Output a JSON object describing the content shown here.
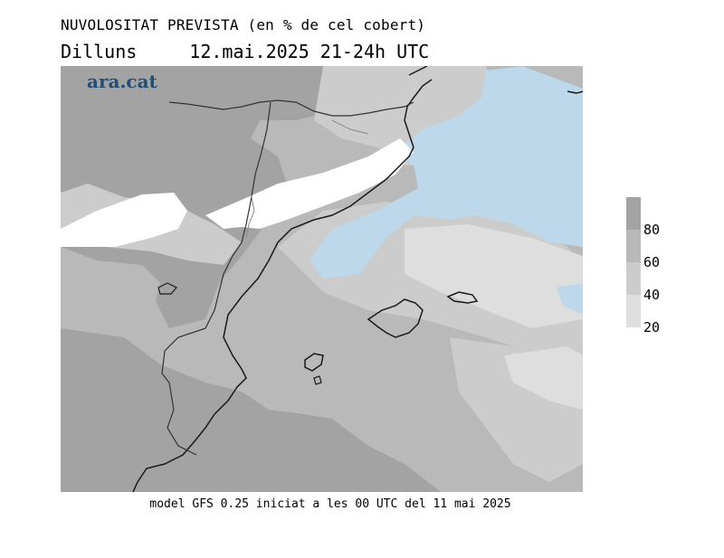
{
  "header": {
    "title": "NUVOLOSITAT PREVISTA (en % de cel cobert)",
    "day": "Dilluns",
    "datetime": "12.mai.2025 21-24h UTC"
  },
  "logo": {
    "text": "ara.cat",
    "color": "#1f4e7a"
  },
  "footer": {
    "text": "model GFS 0.25 iniciat a les 00 UTC del 11 mai 2025"
  },
  "legend": {
    "labels": [
      "80",
      "60",
      "40",
      "20"
    ],
    "colors": [
      "#a3a3a3",
      "#b9b9b9",
      "#cccccc",
      "#dedede"
    ]
  },
  "map_colors": {
    "background": "#ffffff",
    "level_20": "#dedede",
    "level_40": "#cccccc",
    "level_60": "#b9b9b9",
    "level_80": "#a3a3a3",
    "clear_sea": "#bcd8ea",
    "coastline": "#1a1a1a",
    "border": "#555555"
  }
}
